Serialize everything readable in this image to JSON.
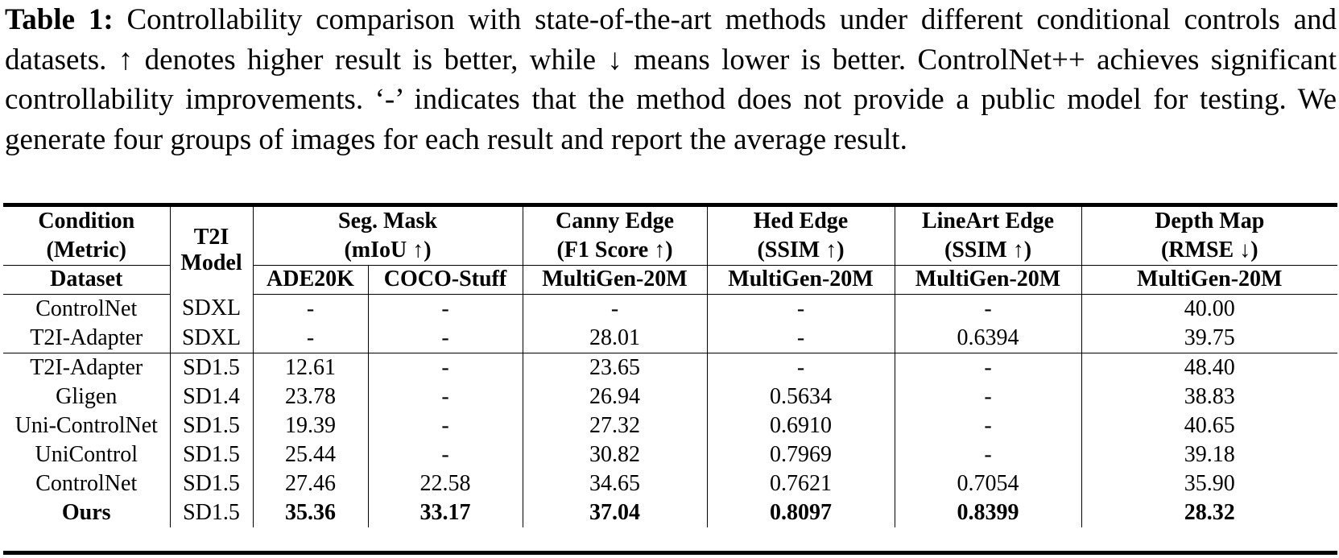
{
  "caption": {
    "label": "Table 1:",
    "text": "Controllability comparison with state-of-the-art methods under different conditional controls and datasets. ↑ denotes higher result is better, while ↓ means lower is better. ControlNet++ achieves significant controllability improvements. ‘-’ indicates that the method does not provide a public model for testing. We generate four groups of images for each result and report the average result."
  },
  "header": {
    "condition_line1": "Condition",
    "condition_line2": "(Metric)",
    "dataset": "Dataset",
    "t2i_line1": "T2I",
    "t2i_line2": "Model",
    "groups": [
      {
        "line1": "Seg. Mask",
        "line2": "(mIoU ↑)"
      },
      {
        "line1": "Canny Edge",
        "line2": "(F1 Score ↑)"
      },
      {
        "line1": "Hed Edge",
        "line2": "(SSIM ↑)"
      },
      {
        "line1": "LineArt Edge",
        "line2": "(SSIM ↑)"
      },
      {
        "line1": "Depth Map",
        "line2": "(RMSE ↓)"
      }
    ],
    "datasets": [
      "ADE20K",
      "COCO-Stuff",
      "MultiGen-20M",
      "MultiGen-20M",
      "MultiGen-20M",
      "MultiGen-20M"
    ]
  },
  "rows": [
    {
      "method": "ControlNet",
      "model": "SDXL",
      "values": [
        "-",
        "-",
        "-",
        "-",
        "-",
        "40.00"
      ]
    },
    {
      "method": "T2I-Adapter",
      "model": "SDXL",
      "values": [
        "-",
        "-",
        "28.01",
        "-",
        "0.6394",
        "39.75"
      ]
    },
    {
      "method": "T2I-Adapter",
      "model": "SD1.5",
      "values": [
        "12.61",
        "-",
        "23.65",
        "-",
        "-",
        "48.40"
      ]
    },
    {
      "method": "Gligen",
      "model": "SD1.4",
      "values": [
        "23.78",
        "-",
        "26.94",
        "0.5634",
        "-",
        "38.83"
      ]
    },
    {
      "method": "Uni-ControlNet",
      "model": "SD1.5",
      "values": [
        "19.39",
        "-",
        "27.32",
        "0.6910",
        "-",
        "40.65"
      ]
    },
    {
      "method": "UniControl",
      "model": "SD1.5",
      "values": [
        "25.44",
        "-",
        "30.82",
        "0.7969",
        "-",
        "39.18"
      ]
    },
    {
      "method": "ControlNet",
      "model": "SD1.5",
      "values": [
        "27.46",
        "22.58",
        "34.65",
        "0.7621",
        "0.7054",
        "35.90"
      ]
    },
    {
      "method": "Ours",
      "model": "SD1.5",
      "values": [
        "35.36",
        "33.17",
        "37.04",
        "0.8097",
        "0.8399",
        "28.32"
      ]
    }
  ]
}
